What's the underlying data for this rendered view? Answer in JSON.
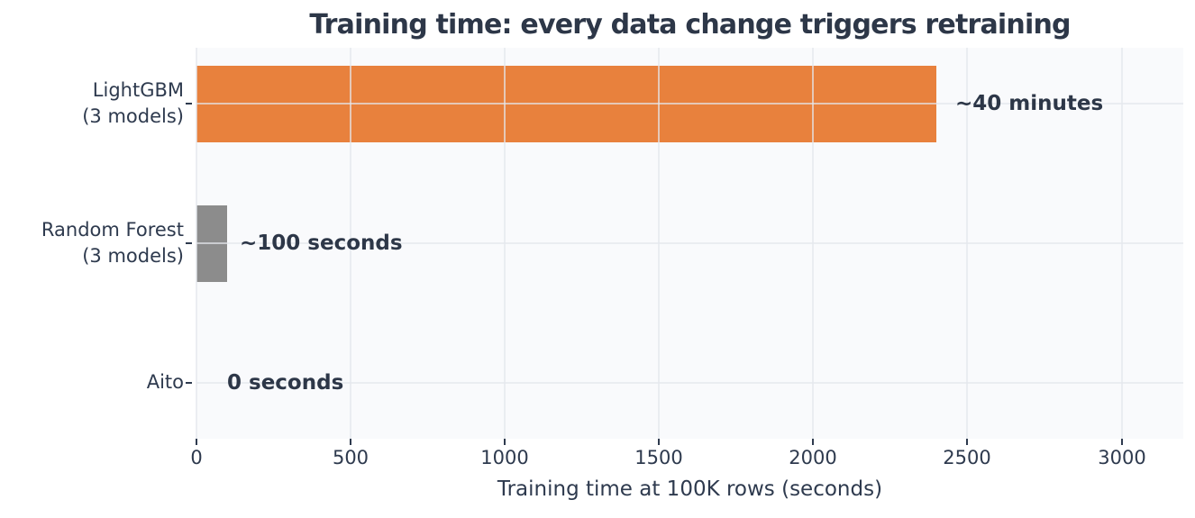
{
  "chart_data": {
    "type": "bar",
    "orientation": "horizontal",
    "title": "Training time: every data change triggers retraining",
    "xlabel": "Training time at 100K rows (seconds)",
    "categories": [
      "LightGBM (3 models)",
      "Random Forest (3 models)",
      "Aito"
    ],
    "category_lines": [
      [
        "LightGBM",
        "(3 models)"
      ],
      [
        "Random Forest",
        "(3 models)"
      ],
      [
        "Aito"
      ]
    ],
    "values": [
      2400,
      100,
      0
    ],
    "value_unit": "seconds",
    "bar_colors": [
      "#e8813d",
      "#8c8c8c",
      "#8c8c8c"
    ],
    "annotations": [
      {
        "text": "~40 minutes",
        "x": 2460
      },
      {
        "text": "~100 seconds",
        "x": 140
      },
      {
        "text": "0 seconds",
        "x": 100
      }
    ],
    "xlim": [
      0,
      3200
    ],
    "xticks": [
      0,
      500,
      1000,
      1500,
      2000,
      2500,
      3000
    ],
    "grid": true,
    "grid_on_top": true,
    "legend": false,
    "colors": {
      "orange": "#e8813d",
      "gray": "#8c8c8c",
      "text": "#2e3a4e",
      "title_text": "#2d3748",
      "gridline": "#e4e7ec",
      "plot_background": "#f9fafc",
      "page_background": "#ffffff"
    }
  }
}
